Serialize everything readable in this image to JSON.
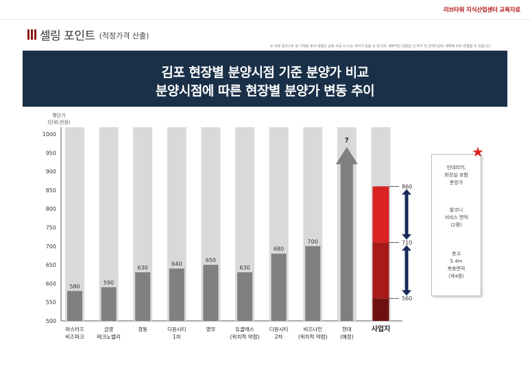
{
  "header": {
    "brand": "리브타워 지식산업센터 교육자료",
    "section_title": "셀링 포인트",
    "section_subtitle": "(적정가격 산출)",
    "disclaimer": "※ 아래 일러스트 및 기재된 표의 내용은 실제 서공 시 다소 차이가 있을 수 있으며, 세부적인 내용은 인·허가 및 관계기관의 계획에 따라 변경될 수 있습니다."
  },
  "banner": {
    "line1": "김포 현장별 분양시점 기준 분양가 비교",
    "line2": "분양시점에 따른 현장별 분양가 변동 추이"
  },
  "chart_data": {
    "type": "bar",
    "ylabel": "평단가",
    "ylabel_unit": "(단위:만원)",
    "ylim": [
      500,
      1000
    ],
    "yticks": [
      500,
      550,
      600,
      650,
      700,
      750,
      800,
      850,
      900,
      950,
      1000
    ],
    "categories": [
      {
        "line1": "마스터즈",
        "line2": "비즈파크"
      },
      {
        "line1": "금광",
        "line2": "테크노밸리"
      },
      {
        "line1": "경동",
        "line2": ""
      },
      {
        "line1": "디원시티",
        "line2": "1차"
      },
      {
        "line1": "영무",
        "line2": ""
      },
      {
        "line1": "듀클래스",
        "line2": "(위치적 약점)"
      },
      {
        "line1": "디원시티",
        "line2": "2차"
      },
      {
        "line1": "비즈나인",
        "line2": "(위치적 약점)"
      },
      {
        "line1": "현대",
        "line2": "(예정)"
      },
      {
        "line1": "사업지",
        "line2": ""
      }
    ],
    "values": [
      580,
      590,
      630,
      640,
      650,
      630,
      680,
      700,
      null,
      null
    ],
    "value_labels": [
      "580",
      "590",
      "630",
      "640",
      "650",
      "630",
      "680",
      "700",
      "?",
      ""
    ],
    "forecast": {
      "index": 8,
      "label": "?",
      "direction": "up"
    },
    "site": {
      "index": 9,
      "stack": [
        {
          "from": 500,
          "to": 560,
          "color": "#6e1010"
        },
        {
          "from": 560,
          "to": 710,
          "color": "#a81a1a"
        },
        {
          "from": 710,
          "to": 860,
          "color": "#d92222"
        }
      ],
      "markers": [
        860,
        710,
        560
      ],
      "marker_labels": [
        "860",
        "710",
        "560"
      ]
    },
    "colors": {
      "background_bar": "#d9d9d9",
      "value_bar": "#808080",
      "arrow": "#7f7f7f",
      "double_arrow": "#1a2a5c"
    }
  },
  "note": {
    "group1": [
      "인테리어,",
      "화장실 포함",
      "분양가"
    ],
    "group2": [
      "발코니",
      "서비스 면적",
      "(2평)"
    ],
    "group3": [
      "층고",
      "5.4m",
      "복층면적",
      "(약4평)"
    ]
  }
}
